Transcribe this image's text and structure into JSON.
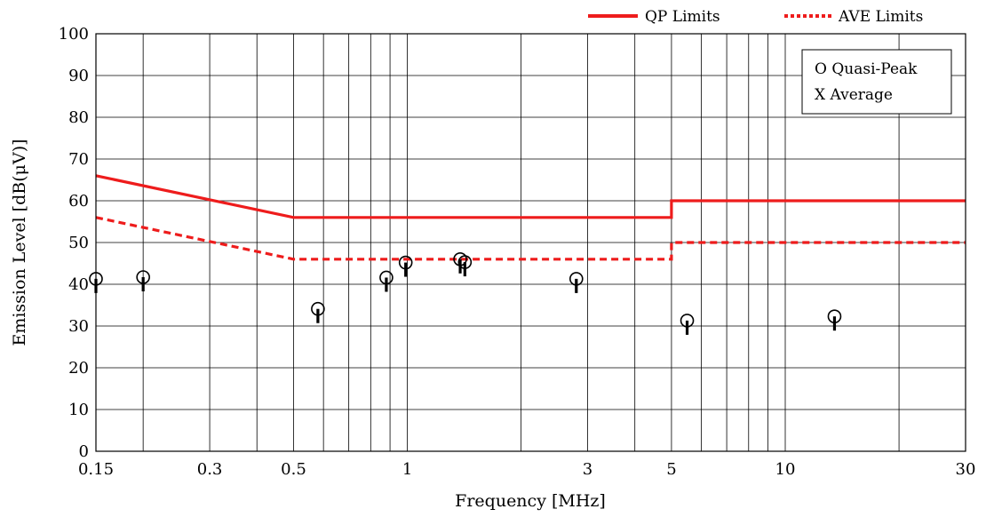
{
  "chart_data": {
    "type": "line",
    "xlabel": "Frequency [MHz]",
    "ylabel": "Emission Level [dB(μV)]",
    "xscale": "log",
    "xlim": [
      0.15,
      30
    ],
    "ylim": [
      0,
      100
    ],
    "x_ticks": [
      0.15,
      0.3,
      0.5,
      1,
      3,
      5,
      10,
      30
    ],
    "x_tick_labels": [
      "0.15",
      "0.3",
      "0.5",
      "1",
      "3",
      "5",
      "10",
      "30"
    ],
    "y_ticks": [
      0,
      10,
      20,
      30,
      40,
      50,
      60,
      70,
      80,
      90,
      100
    ],
    "y_tick_labels": [
      "0",
      "10",
      "20",
      "30",
      "40",
      "50",
      "60",
      "70",
      "80",
      "90",
      "100"
    ],
    "x_minor_gridlines": [
      0.2,
      0.4,
      0.6,
      0.7,
      0.8,
      0.9,
      2,
      4,
      6,
      7,
      8,
      9,
      20
    ],
    "grid": true,
    "legend_position": "top-right",
    "series": [
      {
        "name": "QP Limits",
        "style": "solid",
        "color": "#ee1c1c",
        "points": [
          [
            0.15,
            66
          ],
          [
            0.5,
            56
          ],
          [
            5,
            56
          ],
          [
            5,
            60
          ],
          [
            30,
            60
          ]
        ]
      },
      {
        "name": "AVE Limits",
        "style": "dotted",
        "color": "#ee1c1c",
        "points": [
          [
            0.15,
            56
          ],
          [
            0.5,
            46
          ],
          [
            5,
            46
          ],
          [
            5,
            50
          ],
          [
            30,
            50
          ]
        ]
      }
    ],
    "markers_legend": [
      "O  Quasi-Peak",
      "X  Average"
    ],
    "quasi_peak_points": [
      {
        "x": 0.15,
        "y": 41.3
      },
      {
        "x": 0.2,
        "y": 41.7
      },
      {
        "x": 0.58,
        "y": 34.1
      },
      {
        "x": 0.88,
        "y": 41.6
      },
      {
        "x": 0.99,
        "y": 45.2
      },
      {
        "x": 1.38,
        "y": 46.0
      },
      {
        "x": 1.42,
        "y": 45.3
      },
      {
        "x": 2.8,
        "y": 41.3
      },
      {
        "x": 5.5,
        "y": 31.3
      },
      {
        "x": 13.5,
        "y": 32.3
      }
    ]
  }
}
